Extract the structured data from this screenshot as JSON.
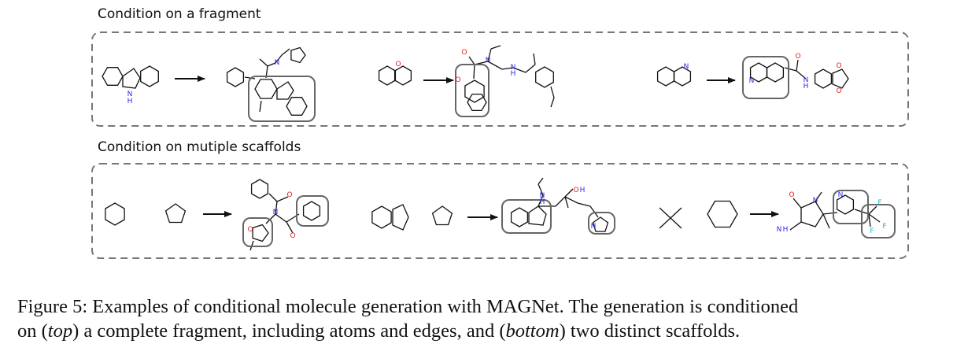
{
  "figure": {
    "top_panel": {
      "title": "Condition on a fragment",
      "examples": [
        {
          "condition": [
            "1,2,3,4-tetrahydrobenzo[4,5]imidazo[1,2-a]pyridine"
          ],
          "atom_labels": [
            "N",
            "H"
          ]
        },
        {
          "condition": [
            "2H-chromene"
          ],
          "atom_labels": [
            "O",
            "O",
            "N",
            "N",
            "H"
          ]
        },
        {
          "condition": [
            "quinoline"
          ],
          "atom_labels": [
            "N",
            "N",
            "O",
            "N",
            "H",
            "O",
            "O"
          ]
        }
      ]
    },
    "bottom_panel": {
      "title": "Condition on mutiple scaffolds",
      "examples": [
        {
          "condition": [
            "cyclohexane",
            "cyclopentane"
          ],
          "atom_labels": [
            "O",
            "N",
            "O",
            "O"
          ]
        },
        {
          "condition": [
            "octahydroindene",
            "cyclopentane"
          ],
          "atom_labels": [
            "N",
            "H",
            "O",
            "H",
            "N"
          ]
        },
        {
          "condition": [
            "neopentane",
            "cyclohexane"
          ],
          "atom_labels": [
            "O",
            "N",
            "H",
            "N",
            "N",
            "F",
            "F",
            "F"
          ]
        }
      ]
    },
    "atom_colors": {
      "N": "#2a2ae8",
      "O": "#e02020",
      "F": "#19b8c4"
    },
    "caption": {
      "label": "Figure 5:",
      "line1": "Examples of conditional molecule generation with MAGNet. The generation is conditioned",
      "line2_pre": "on (",
      "top": "top",
      "line2_mid": ") a complete fragment, including atoms and edges, and (",
      "bottom": "bottom",
      "line2_post": ") two distinct scaffolds."
    }
  }
}
